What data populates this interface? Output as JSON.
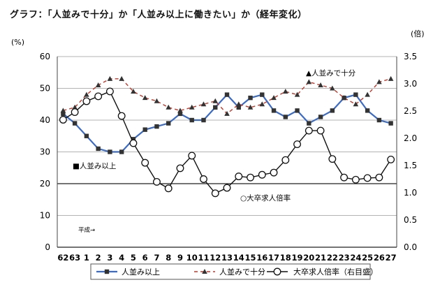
{
  "chart_data": {
    "type": "line",
    "title": "グラフ：「人並みで十分」か「人並み以上に働きたい」か（経年変化）",
    "left_unit": "(%)",
    "right_unit": "(倍)",
    "x": [
      "62",
      "63",
      "1",
      "2",
      "3",
      "4",
      "5",
      "6",
      "7",
      "8",
      "9",
      "10",
      "11",
      "12",
      "13",
      "14",
      "15",
      "16",
      "17",
      "18",
      "19",
      "20",
      "21",
      "22",
      "23",
      "24",
      "25",
      "26",
      "27"
    ],
    "y_left_range": [
      0,
      60
    ],
    "y_left_ticks": [
      "0",
      "10",
      "20",
      "30",
      "40",
      "50",
      "60"
    ],
    "y_right_range": [
      0,
      3.5
    ],
    "y_right_ticks": [
      "0.0",
      "0.5",
      "1.0",
      "1.5",
      "2.0",
      "2.5",
      "3.0",
      "3.5"
    ],
    "grid": "horizontal",
    "reference_line_left": 20,
    "legend_position": "bottom",
    "series": [
      {
        "name": "人並み以上",
        "axis": "left",
        "marker": "square",
        "color": "#3b6bc4",
        "values": [
          42,
          39,
          35,
          31,
          30,
          30,
          34,
          37,
          38,
          39,
          42,
          40,
          40,
          44,
          48,
          44,
          47,
          48,
          43,
          41,
          43,
          39,
          41,
          43,
          47,
          48,
          43,
          40,
          39
        ]
      },
      {
        "name": "人並みで十分",
        "axis": "left",
        "marker": "triangle",
        "color": "#c0392b",
        "values": [
          43,
          44,
          48,
          51,
          53,
          53,
          49,
          47,
          46,
          44,
          43,
          44,
          45,
          46,
          42,
          45,
          44,
          45,
          47,
          49,
          48,
          52,
          51,
          50,
          47,
          45,
          48,
          52,
          53
        ]
      },
      {
        "name": "大卒求人倍率（右目盛）",
        "axis": "right",
        "marker": "circle",
        "color": "#111111",
        "values": [
          2.34,
          2.48,
          2.68,
          2.77,
          2.86,
          2.41,
          1.91,
          1.55,
          1.2,
          1.08,
          1.45,
          1.68,
          1.25,
          0.99,
          1.09,
          1.3,
          1.28,
          1.33,
          1.37,
          1.6,
          1.89,
          2.14,
          2.14,
          1.62,
          1.28,
          1.24,
          1.27,
          1.28,
          1.61
        ]
      }
    ],
    "annotations": [
      {
        "text": "▲人並みで十分",
        "series": 1
      },
      {
        "text": "■人並み以上",
        "series": 0
      },
      {
        "text": "○大卒求人倍率",
        "series": 2
      },
      {
        "text": "平成→",
        "series": -1
      }
    ]
  }
}
